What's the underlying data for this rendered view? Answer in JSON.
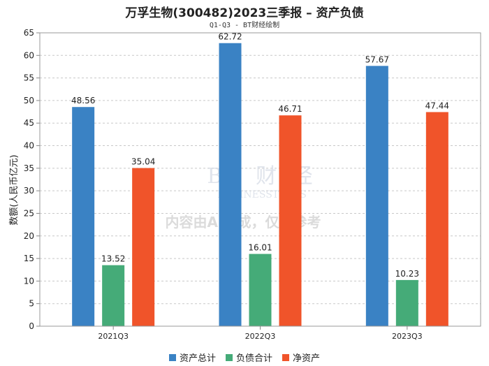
{
  "header": {
    "title": "万孚生物(300482)2023三季报 – 资产负债",
    "subtitle": "Q1-Q3 - BT财经绘制"
  },
  "watermark": {
    "logo_text": "BT 财 经",
    "logo_sub": "BUSINESSTIMES",
    "notice": "内容由AI生成，仅供参考"
  },
  "chart_data": {
    "type": "bar",
    "title": "万孚生物(300482)2023三季报 – 资产负债",
    "subtitle": "Q1-Q3 - BT财经绘制",
    "xlabel": "",
    "ylabel": "数额(人民币亿元)",
    "ylim": [
      0,
      65
    ],
    "yticks": [
      0,
      5,
      10,
      15,
      20,
      25,
      30,
      35,
      40,
      45,
      50,
      55,
      60,
      65
    ],
    "grid": true,
    "legend_position": "bottom",
    "categories": [
      "2021Q3",
      "2022Q3",
      "2023Q3"
    ],
    "series": [
      {
        "name": "资产总计",
        "color": "#3a82c4",
        "values": [
          48.56,
          62.72,
          57.67
        ],
        "labels": [
          "48.56",
          "62.72",
          "57.67"
        ]
      },
      {
        "name": "负债合计",
        "color": "#45ab78",
        "values": [
          13.52,
          16.01,
          10.23
        ],
        "labels": [
          "13.52",
          "16.01",
          "10.23"
        ]
      },
      {
        "name": "净资产",
        "color": "#f0542a",
        "values": [
          35.04,
          46.71,
          47.44
        ],
        "labels": [
          "35.04",
          "46.71",
          "47.44"
        ]
      }
    ]
  }
}
